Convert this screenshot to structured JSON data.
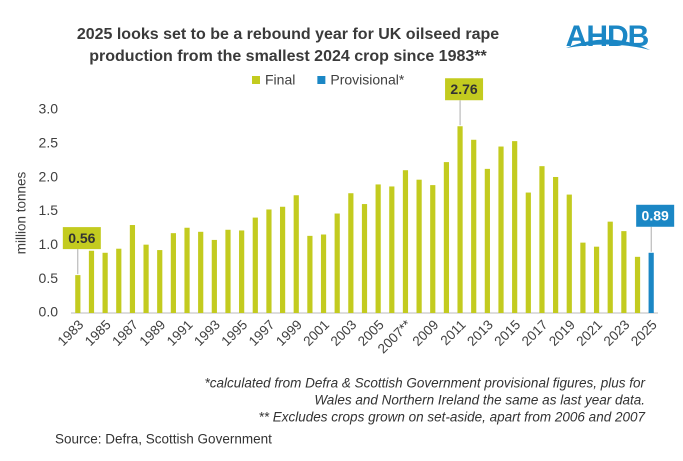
{
  "chart_data": {
    "type": "bar",
    "title": [
      "2025 looks set to be a rebound year for UK oilseed rape",
      "production from the smallest 2024 crop since 1983**"
    ],
    "logo": "AHDB",
    "y_label": "million tonnes",
    "categories": [
      "1983",
      null,
      "1985",
      null,
      "1987",
      null,
      "1989",
      null,
      "1991",
      null,
      "1993",
      null,
      "1995",
      null,
      "1997",
      null,
      "1999",
      null,
      "2001",
      null,
      "2003",
      null,
      "2005",
      null,
      "2007**",
      null,
      "2009",
      null,
      "2011",
      null,
      "2013",
      null,
      "2015",
      null,
      "2017",
      null,
      "2019",
      null,
      "2021",
      null,
      "2023",
      null,
      "2025"
    ],
    "series": [
      {
        "name": "Final",
        "color": "#c3cb1f",
        "label_color": "#c3cb1f",
        "label_text_color": "#333333",
        "labels_at": [
          0,
          28
        ],
        "values": [
          0.56,
          0.92,
          0.89,
          0.95,
          1.3,
          1.01,
          0.93,
          1.18,
          1.26,
          1.2,
          1.08,
          1.23,
          1.22,
          1.41,
          1.53,
          1.57,
          1.74,
          1.14,
          1.16,
          1.47,
          1.77,
          1.61,
          1.9,
          1.87,
          2.11,
          1.97,
          1.89,
          2.23,
          2.76,
          2.56,
          2.13,
          2.46,
          2.54,
          1.78,
          2.17,
          2.01,
          1.75,
          1.04,
          0.98,
          1.35,
          1.21,
          0.83,
          null
        ]
      },
      {
        "name": "Provisional*",
        "color": "#1b87c5",
        "label_color": "#1b87c5",
        "label_text_color": "#ffffff",
        "labels_at": [
          42
        ],
        "values": [
          null,
          null,
          null,
          null,
          null,
          null,
          null,
          null,
          null,
          null,
          null,
          null,
          null,
          null,
          null,
          null,
          null,
          null,
          null,
          null,
          null,
          null,
          null,
          null,
          null,
          null,
          null,
          null,
          null,
          null,
          null,
          null,
          null,
          null,
          null,
          null,
          null,
          null,
          null,
          null,
          null,
          null,
          0.89
        ]
      }
    ],
    "ylim": [
      0,
      3.0
    ],
    "yticks": [
      {
        "value": 0,
        "label": "0.0"
      },
      {
        "value": 0.5,
        "label": "0.5"
      },
      {
        "value": 1,
        "label": "1.0"
      },
      {
        "value": 1.5,
        "label": "1.5"
      },
      {
        "value": 2,
        "label": "2.0"
      },
      {
        "value": 2.5,
        "label": "2.5"
      },
      {
        "value": 3,
        "label": "3.0"
      }
    ],
    "grid": false,
    "notes": [
      "*calculated from Defra & Scottish Government provisional figures, plus for",
      "Wales and Northern Ireland the same as last year data.",
      "** Excludes crops grown on set-aside, apart from 2006 and 2007"
    ],
    "source": "Source: Defra, Scottish Government"
  }
}
